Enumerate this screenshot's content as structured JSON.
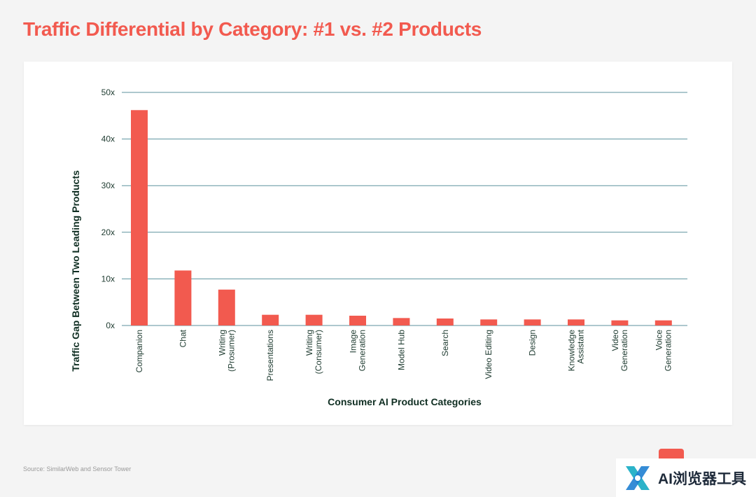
{
  "page": {
    "title": "Traffic Differential by Category: #1 vs. #2 Products",
    "source": "Source: SimilarWeb and Sensor Tower",
    "watermark_text": "AI浏览器工具",
    "watermark_icon": "x-logo-icon"
  },
  "colors": {
    "accent": "#f25a4f",
    "bar": "#f25a4f",
    "grid": "#3f7f8c",
    "axis_text": "#1d3a2f",
    "title_text": "#0f2e22"
  },
  "chart_data": {
    "type": "bar",
    "title": "",
    "xlabel": "Consumer AI Product Categories",
    "ylabel": "Traffic Gap Between Two Leading Products",
    "ylim": [
      0,
      50
    ],
    "yticks": [
      0,
      10,
      20,
      30,
      40,
      50
    ],
    "ytick_labels": [
      "0x",
      "10x",
      "20x",
      "30x",
      "40x",
      "50x"
    ],
    "grid": true,
    "categories": [
      [
        "Companion"
      ],
      [
        "Chat"
      ],
      [
        "Writing",
        "(Prosumer)"
      ],
      [
        "Presentations"
      ],
      [
        "Writing",
        "(Consumer)"
      ],
      [
        "Image",
        "Generation"
      ],
      [
        "Model Hub"
      ],
      [
        "Search"
      ],
      [
        "Video Editing"
      ],
      [
        "Design"
      ],
      [
        "Knowledge",
        "Assistant"
      ],
      [
        "Video",
        "Generation"
      ],
      [
        "Voice",
        "Generation"
      ]
    ],
    "values": [
      46.2,
      11.8,
      7.7,
      2.3,
      2.3,
      2.1,
      1.6,
      1.5,
      1.3,
      1.3,
      1.3,
      1.1,
      1.1
    ]
  }
}
